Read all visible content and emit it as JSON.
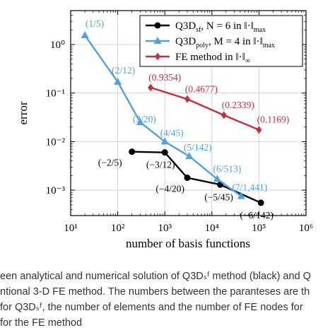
{
  "chart_data": {
    "type": "line",
    "xlabel": "number of basis functions",
    "ylabel": "error",
    "xscale": "log",
    "yscale": "log",
    "xlim": [
      10,
      1000000
    ],
    "ylim": [
      0.0003,
      5
    ],
    "x_tick_labels": [
      "10¹",
      "10²",
      "10³",
      "10⁴",
      "10⁵",
      "10⁶"
    ],
    "x_tick_values": [
      10,
      100,
      1000,
      10000,
      100000,
      1000000
    ],
    "y_tick_labels": [
      "10⁻³",
      "10⁻²",
      "10⁻¹",
      "10⁰"
    ],
    "y_tick_values": [
      0.001,
      0.01,
      0.1,
      1
    ],
    "grid": true,
    "legend_position": "top-right",
    "series": [
      {
        "name": "Q3D_sf, N = 6 in ‖·‖_max",
        "legend_main": "Q3D",
        "legend_sub": "sf",
        "legend_rest": ", N = 6 in ‖·‖",
        "legend_norm_sub": "max",
        "color": "#000000",
        "marker": "circle",
        "x": [
          200,
          1000,
          3000,
          15000,
          110000
        ],
        "y": [
          0.0062,
          0.006,
          0.0018,
          0.0013,
          0.00055
        ],
        "labels": [
          "(−2/5)",
          "(−3/12)",
          "(−4/20)",
          "(−5/45)",
          "(−6/142)"
        ]
      },
      {
        "name": "Q3D_poly, M = 4 in ‖·‖_max",
        "legend_main": "Q3D",
        "legend_sub": "poly",
        "legend_rest": ", M = 4 in ‖·‖",
        "legend_norm_sub": "max",
        "color": "#4fa3dd",
        "marker": "triangle",
        "x": [
          20,
          100,
          300,
          1000,
          3300,
          13000,
          42000
        ],
        "y": [
          1.55,
          0.17,
          0.025,
          0.01,
          0.005,
          0.0017,
          0.00075
        ],
        "labels": [
          "(1/5)",
          "(2/12)",
          "(3/20)",
          "(4/45)",
          "(5/142)",
          "(6/513)",
          "(7/1,441)"
        ]
      },
      {
        "name": "FE method in ‖·‖_∞",
        "legend_main": "FE method in ‖·‖",
        "legend_sub": "",
        "legend_rest": "",
        "legend_norm_sub": "∞",
        "color": "#c62d3d",
        "marker": "diamond",
        "x": [
          500,
          3000,
          18000,
          100000
        ],
        "y": [
          0.13,
          0.075,
          0.035,
          0.0175
        ],
        "labels": [
          "(0.9354)",
          "(0.4677)",
          "(0.2339)",
          "(0.1169)"
        ]
      }
    ]
  },
  "caption": {
    "lines": [
      "een analytical and numerical solution of Q3Dₛᶠ method (black) and Q",
      "ntional 3-D FE method. The numbers between the paranteses are th",
      "for Q3Dₛᶠ, the number of elements and the number of FE nodes for",
      "for the FE method"
    ]
  }
}
